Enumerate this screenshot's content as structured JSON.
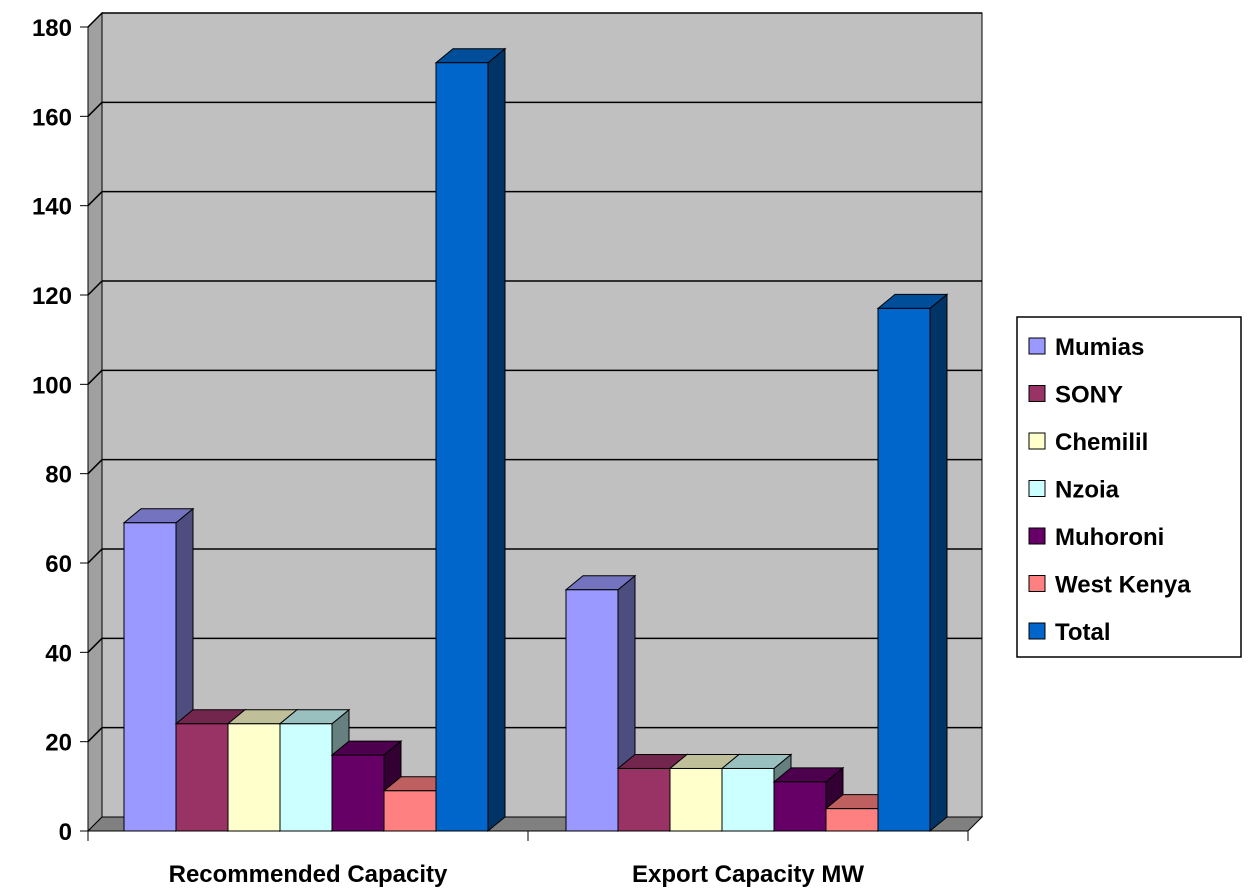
{
  "chart_data": {
    "type": "bar",
    "categories": [
      "Recommended Capacity",
      "Export Capacity MW"
    ],
    "series": [
      {
        "name": "Mumias",
        "values": [
          69,
          54
        ],
        "color": "#9999FF"
      },
      {
        "name": "SONY",
        "values": [
          24,
          14
        ],
        "color": "#993366"
      },
      {
        "name": "Chemilil",
        "values": [
          24,
          14
        ],
        "color": "#FFFFCC"
      },
      {
        "name": "Nzoia",
        "values": [
          24,
          14
        ],
        "color": "#CCFFFF"
      },
      {
        "name": "Muhoroni",
        "values": [
          17,
          11
        ],
        "color": "#660066"
      },
      {
        "name": "West Kenya",
        "values": [
          9,
          5
        ],
        "color": "#FF8080"
      },
      {
        "name": "Total",
        "values": [
          172,
          117
        ],
        "color": "#0066CC"
      }
    ],
    "ylim": [
      0,
      180
    ],
    "yticks": [
      0,
      20,
      40,
      60,
      80,
      100,
      120,
      140,
      160,
      180
    ],
    "grid": true,
    "legend": "right",
    "plot_background": "#C0C0C0"
  }
}
